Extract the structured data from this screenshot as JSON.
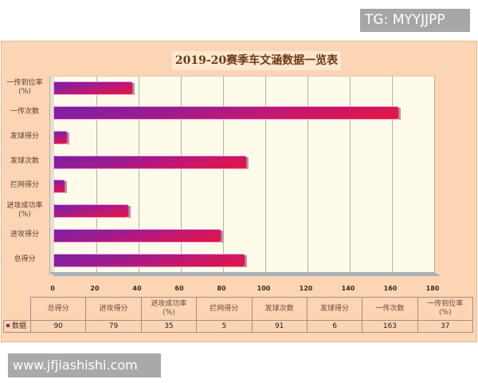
{
  "watermarks": {
    "top": "TG: MYYJJPP",
    "bottom": "www.jfjiashishi.com"
  },
  "colors": {
    "panel_bg": "#fcd5b5",
    "plot_bg": "#fefbea",
    "bar_start": "#7a1fa8",
    "bar_end": "#e8153d",
    "title_color": "#6b3a12"
  },
  "chart_data": {
    "type": "bar",
    "orientation": "horizontal",
    "title": "2019-20赛季车文涵数据一览表",
    "xlabel": "",
    "ylabel": "",
    "xlim": [
      0,
      180
    ],
    "x_ticks": [
      "0",
      "20",
      "40",
      "60",
      "80",
      "100",
      "120",
      "140",
      "160",
      "180"
    ],
    "grid": true,
    "legend_position": "table-left",
    "categories": [
      "总得分",
      "进攻得分",
      "进攻成功率(%)",
      "拦网得分",
      "发球次数",
      "发球得分",
      "一传次数",
      "一传到位率(%)"
    ],
    "series": [
      {
        "name": "数据",
        "values": [
          90,
          79,
          35,
          5,
          91,
          6,
          163,
          37
        ]
      }
    ]
  },
  "axis_labels": [
    {
      "line1": "一传到位率",
      "line2": "(%)"
    },
    {
      "line1": "一传次数",
      "line2": ""
    },
    {
      "line1": "发球得分",
      "line2": ""
    },
    {
      "line1": "发球次数",
      "line2": ""
    },
    {
      "line1": "拦网得分",
      "line2": ""
    },
    {
      "line1": "进攻成功率",
      "line2": "(%)"
    },
    {
      "line1": "进攻得分",
      "line2": ""
    },
    {
      "line1": "总得分",
      "line2": ""
    }
  ],
  "table": {
    "headers": [
      {
        "line1": "总得分",
        "line2": ""
      },
      {
        "line1": "进攻得分",
        "line2": ""
      },
      {
        "line1": "进攻成功率",
        "line2": "(%)"
      },
      {
        "line1": "拦网得分",
        "line2": ""
      },
      {
        "line1": "发球次数",
        "line2": ""
      },
      {
        "line1": "发球得分",
        "line2": ""
      },
      {
        "line1": "一传次数",
        "line2": ""
      },
      {
        "line1": "一传到位率",
        "line2": "(%)"
      }
    ],
    "series_label": "数据",
    "values": [
      "90",
      "79",
      "35",
      "5",
      "91",
      "6",
      "163",
      "37"
    ]
  }
}
